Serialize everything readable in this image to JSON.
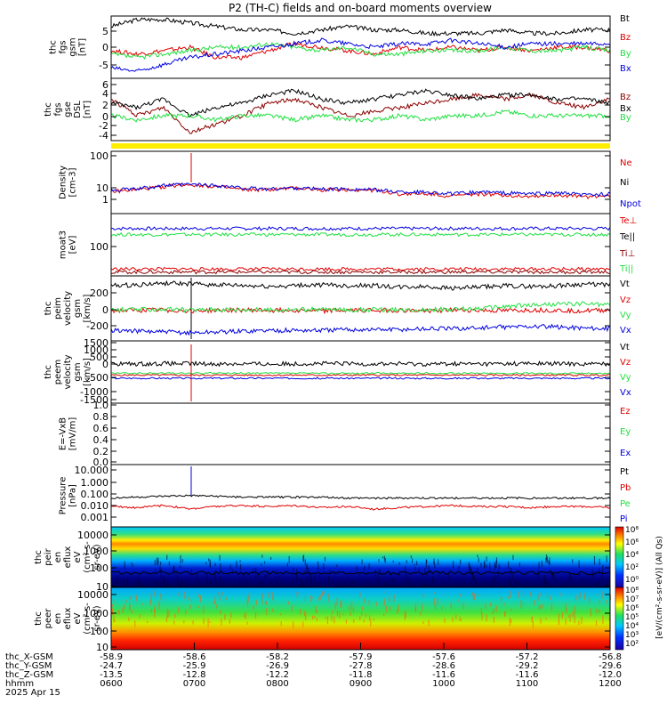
{
  "title": "P2 (TH-C) fields and on-board moments overview",
  "colors": {
    "black": "#000000",
    "red": "#e00000",
    "green": "#20e040",
    "blue": "#0000e0",
    "darkred": "#8b0000",
    "yellow": "#ffee00"
  },
  "chart_data": [
    {
      "type": "line",
      "id": "fgs",
      "ylabel": [
        "thc",
        "fgs",
        "gsm",
        "[nT]"
      ],
      "ylim": [
        -9,
        9
      ],
      "ticks": [
        5,
        0,
        -5
      ],
      "series": [
        {
          "name": "Bt",
          "color": "black",
          "values": [
            6,
            8,
            8,
            7,
            6,
            5,
            5,
            4,
            5,
            6,
            5,
            5,
            4,
            4,
            4,
            5,
            4,
            4,
            5,
            5
          ]
        },
        {
          "name": "Bz",
          "color": "red",
          "values": [
            -1,
            -2,
            -1,
            0,
            -3,
            -3,
            -1,
            1,
            0,
            -1,
            -2,
            0,
            -1,
            0,
            -1,
            0,
            -1,
            0,
            0,
            -1
          ]
        },
        {
          "name": "By",
          "color": "green",
          "values": [
            -2,
            -3,
            -2,
            -1,
            0,
            0,
            1,
            0,
            -1,
            0,
            -2,
            -2,
            -1,
            -1,
            -1,
            0,
            -1,
            -1,
            0,
            -1
          ]
        },
        {
          "name": "Bx",
          "color": "blue",
          "values": [
            -6,
            -7,
            -5,
            -3,
            -2,
            -1,
            0,
            1,
            2,
            1,
            0,
            1,
            1,
            2,
            1,
            0,
            1,
            1,
            1,
            1
          ]
        }
      ]
    },
    {
      "type": "line",
      "id": "fgs-fac",
      "ylabel": [
        "thc",
        "fgs",
        "gse",
        "DSL",
        "[nT]"
      ],
      "ylim": [
        -8,
        7
      ],
      "ticks": [
        6,
        4,
        2,
        0,
        -2,
        -4,
        -6
      ],
      "series": [
        {
          "name": "Bz",
          "color": "darkred",
          "values": [
            2,
            -2,
            0,
            -6,
            -4,
            -2,
            1,
            2,
            0,
            -2,
            -1,
            0,
            1,
            2,
            3,
            2,
            3,
            1,
            0,
            2
          ]
        },
        {
          "name": "Bx",
          "color": "black",
          "values": [
            1,
            0,
            2,
            -2,
            0,
            1,
            3,
            4,
            2,
            1,
            2,
            3,
            4,
            3,
            2,
            3,
            3,
            2,
            2,
            1
          ]
        },
        {
          "name": "By",
          "color": "green",
          "values": [
            -2,
            -3,
            -2,
            -2,
            -3,
            -2,
            -2,
            -3,
            -2,
            -3,
            -3,
            -2,
            -3,
            -2,
            -2,
            -1,
            -2,
            -2,
            -2,
            -2
          ]
        }
      ]
    },
    {
      "type": "line",
      "id": "density",
      "ylabel": [
        "Density",
        "[cm-3]"
      ],
      "log": true,
      "ylim": [
        0.3,
        120
      ],
      "ticks": [
        "100",
        "10",
        "1"
      ],
      "series": [
        {
          "name": "Ne",
          "color": "red",
          "values": [
            2.5,
            3,
            4,
            5,
            4,
            3,
            3,
            3.5,
            3,
            3,
            2.8,
            2,
            2,
            1.6,
            2,
            1.8,
            1.6,
            1.8,
            1.5,
            1.7
          ]
        },
        {
          "name": "Ni",
          "color": "black",
          "values": []
        },
        {
          "name": "Npot",
          "color": "blue",
          "values": [
            3,
            3.2,
            4.5,
            5,
            4.5,
            3.5,
            3.2,
            3.6,
            3.2,
            3.2,
            3,
            2.4,
            2.4,
            2,
            2.4,
            2.2,
            2,
            2.2,
            1.8,
            2
          ]
        }
      ]
    },
    {
      "type": "line",
      "id": "temp",
      "ylabel": [
        "moat3",
        "[eV]"
      ],
      "log": true,
      "ylim": [
        15,
        1500
      ],
      "ticks": [
        "100"
      ],
      "series": [
        {
          "name": "Te⊥",
          "color": "red",
          "values": []
        },
        {
          "name": "Te||",
          "color": "black",
          "values": []
        },
        {
          "name": "Ti⊥",
          "color": "darkred",
          "values": []
        },
        {
          "name": "Ti||",
          "color": "green",
          "values": []
        }
      ]
    },
    {
      "type": "line",
      "id": "peim",
      "ylabel": [
        "thc",
        "peim",
        "velocity",
        "gsm",
        "[km/s]"
      ],
      "ylim": [
        -380,
        420
      ],
      "ticks": [
        200,
        0,
        -200
      ],
      "series": [
        {
          "name": "Vt",
          "color": "black",
          "values": [
            300,
            310,
            330,
            320,
            310,
            300,
            290,
            300,
            310,
            300,
            300,
            280,
            290,
            270,
            280,
            300,
            290,
            300,
            320,
            310
          ]
        },
        {
          "name": "Vz",
          "color": "red",
          "values": [
            -10,
            -5,
            0,
            -10,
            -5,
            0,
            -5,
            0,
            -10,
            -5,
            0,
            -5,
            -10,
            0,
            -5,
            -10,
            0,
            -5,
            -10,
            0
          ]
        },
        {
          "name": "Vy",
          "color": "green",
          "values": [
            0,
            5,
            10,
            0,
            10,
            5,
            0,
            5,
            10,
            0,
            5,
            0,
            10,
            5,
            20,
            40,
            60,
            70,
            80,
            60
          ]
        },
        {
          "name": "Vx",
          "color": "blue",
          "values": [
            -250,
            -260,
            -270,
            -280,
            -270,
            -260,
            -250,
            -250,
            -250,
            -240,
            -240,
            -240,
            -230,
            -230,
            -220,
            -210,
            -200,
            -210,
            -220,
            -230
          ]
        }
      ]
    },
    {
      "type": "line",
      "id": "peem",
      "ylabel": [
        "thc",
        "peem",
        "velocity",
        "gsm",
        "[km/s]"
      ],
      "ylim": [
        -1500,
        1500
      ],
      "ticks": [
        1500,
        1000,
        500,
        0,
        -500,
        -1000,
        -1500
      ],
      "series": [
        {
          "name": "Vt",
          "color": "black",
          "values": [
            400,
            390,
            410,
            400,
            390,
            400,
            380,
            400,
            410,
            400,
            390,
            400,
            380,
            400,
            390,
            400,
            410,
            400,
            390,
            400
          ]
        },
        {
          "name": "Vz",
          "color": "red",
          "values": []
        },
        {
          "name": "Vy",
          "color": "green",
          "values": []
        },
        {
          "name": "Vx",
          "color": "blue",
          "values": []
        }
      ]
    },
    {
      "type": "line",
      "id": "exb",
      "ylabel": [
        "E=-VxB",
        "[mV/m]"
      ],
      "ylim": [
        0,
        1
      ],
      "ticks": [
        "1.0",
        "0.8",
        "0.6",
        "0.4",
        "0.2",
        "0.0"
      ],
      "series": [
        {
          "name": "Ez",
          "color": "red",
          "values": []
        },
        {
          "name": "Ey",
          "color": "green",
          "values": []
        },
        {
          "name": "Ex",
          "color": "blue",
          "values": []
        }
      ]
    },
    {
      "type": "line",
      "id": "pressure",
      "ylabel": [
        "Pressure",
        "[nPa]"
      ],
      "log": true,
      "ylim": [
        0.0002,
        30
      ],
      "ticks": [
        "10.000",
        "1.000",
        "0.100",
        "0.010",
        "0.001"
      ],
      "series": [
        {
          "name": "Pt",
          "color": "black",
          "values": [
            0.05,
            0.06,
            0.07,
            0.08,
            0.07,
            0.06,
            0.06,
            0.06,
            0.06,
            0.05,
            0.05,
            0.05,
            0.05,
            0.05,
            0.05,
            0.05,
            0.05,
            0.05,
            0.05,
            0.05
          ]
        },
        {
          "name": "Pb",
          "color": "red",
          "values": [
            0.01,
            0.008,
            0.012,
            0.006,
            0.01,
            0.012,
            0.01,
            0.012,
            0.008,
            0.01,
            0.006,
            0.008,
            0.01,
            0.012,
            0.01,
            0.01,
            0.008,
            0.01,
            0.01,
            0.008
          ]
        },
        {
          "name": "Pe",
          "color": "green",
          "values": []
        },
        {
          "name": "Pi",
          "color": "blue",
          "values": []
        }
      ]
    },
    {
      "type": "heatmap",
      "id": "peir",
      "ylabel": [
        "thc",
        "peir",
        "en",
        "eflux",
        "eV",
        "(cm²-s-",
        "sr-eV)"
      ],
      "ticks": [
        "10000",
        "1000",
        "100",
        "10"
      ]
    },
    {
      "type": "heatmap",
      "id": "peer",
      "ylabel": [
        "thc",
        "peer",
        "en",
        "eflux",
        "eV",
        "(cm²-s-",
        "sr-eV)"
      ],
      "ticks": [
        "10000",
        "1000",
        "100",
        "10"
      ]
    }
  ],
  "colorbar": {
    "label": "[eV/(cm²-s-sr-eV)] (All Qs)",
    "upper_ticks": [
      "10⁸",
      "10⁶",
      "10⁴",
      "10²",
      "10⁰"
    ],
    "lower_ticks": [
      "10⁸",
      "10⁷",
      "10⁶",
      "10⁵",
      "10⁴",
      "10³",
      "10²"
    ]
  },
  "x_axis": {
    "row_labels": [
      "thc_X-GSM",
      "thc_Y-GSM",
      "thc_Z-GSM",
      "hhmm",
      "2025 Apr 15"
    ],
    "columns": [
      {
        "x": "-58.9",
        "y": "-24.7",
        "z": "-13.5",
        "t": "0600"
      },
      {
        "x": "-58.6",
        "y": "-25.9",
        "z": "-12.8",
        "t": "0700"
      },
      {
        "x": "-58.2",
        "y": "-26.9",
        "z": "-12.2",
        "t": "0800"
      },
      {
        "x": "-57.9",
        "y": "-27.8",
        "z": "-11.8",
        "t": "0900"
      },
      {
        "x": "-57.6",
        "y": "-28.6",
        "z": "-11.6",
        "t": "1000"
      },
      {
        "x": "-57.2",
        "y": "-29.2",
        "z": "-11.6",
        "t": "1100"
      },
      {
        "x": "-56.8",
        "y": "-29.6",
        "z": "-12.0",
        "t": "1200"
      }
    ]
  }
}
